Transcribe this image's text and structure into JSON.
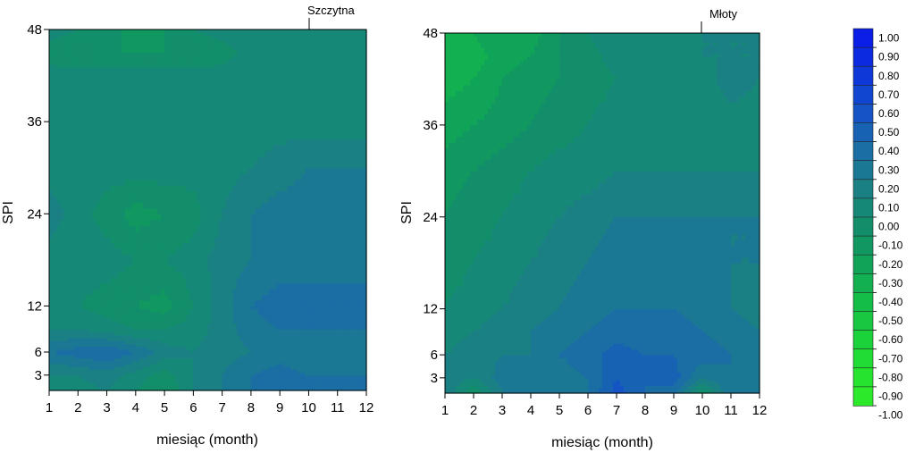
{
  "chart_data": [
    {
      "type": "heatmap",
      "station": "Szczytna",
      "xlabel": "miesiąc (month)",
      "ylabel": "SPI",
      "x_ticks": [
        "1",
        "2",
        "3",
        "4",
        "5",
        "6",
        "7",
        "8",
        "9",
        "10",
        "11",
        "12"
      ],
      "y_ticks": [
        "3",
        "6",
        "12",
        "24",
        "36",
        "48"
      ],
      "xlim": [
        1,
        12
      ],
      "ylim": [
        1,
        48
      ],
      "y_rows": [
        1,
        3,
        6,
        9,
        12,
        18,
        24,
        30,
        36,
        42,
        45,
        48
      ],
      "z": [
        [
          0.05,
          0.05,
          0.1,
          0.0,
          -0.1,
          0.1,
          0.2,
          0.3,
          0.35,
          0.3,
          0.35,
          0.35
        ],
        [
          0.1,
          0.1,
          0.15,
          0.05,
          -0.05,
          0.1,
          0.2,
          0.3,
          0.35,
          0.3,
          0.3,
          0.3
        ],
        [
          0.3,
          0.35,
          0.4,
          0.3,
          0.15,
          0.1,
          0.15,
          0.2,
          0.25,
          0.2,
          0.2,
          0.2
        ],
        [
          0.1,
          0.1,
          0.05,
          0.0,
          0.0,
          0.05,
          0.15,
          0.25,
          0.3,
          0.3,
          0.3,
          0.3
        ],
        [
          0.1,
          0.0,
          -0.05,
          -0.1,
          -0.15,
          0.0,
          0.15,
          0.3,
          0.35,
          0.35,
          0.35,
          0.35
        ],
        [
          0.05,
          0.05,
          0.05,
          0.0,
          0.0,
          0.05,
          0.15,
          0.2,
          0.25,
          0.25,
          0.25,
          0.25
        ],
        [
          0.15,
          0.05,
          -0.05,
          -0.15,
          -0.1,
          -0.05,
          0.1,
          0.2,
          0.25,
          0.25,
          0.25,
          0.25
        ],
        [
          0.05,
          0.05,
          0.05,
          0.05,
          0.05,
          0.05,
          0.05,
          0.1,
          0.15,
          0.2,
          0.2,
          0.2
        ],
        [
          0.05,
          0.05,
          0.05,
          0.05,
          0.05,
          0.05,
          0.05,
          0.05,
          0.05,
          0.05,
          0.05,
          0.05
        ],
        [
          0.05,
          0.05,
          0.05,
          0.05,
          0.05,
          0.05,
          0.05,
          0.05,
          0.05,
          0.05,
          0.05,
          0.05
        ],
        [
          -0.05,
          -0.1,
          -0.1,
          -0.1,
          -0.1,
          -0.1,
          -0.05,
          0.05,
          0.05,
          0.05,
          0.05,
          0.05
        ],
        [
          0.05,
          0.0,
          -0.05,
          -0.15,
          -0.1,
          0.0,
          0.05,
          0.05,
          0.05,
          0.0,
          0.05,
          0.05
        ]
      ]
    },
    {
      "type": "heatmap",
      "station": "Młoty",
      "xlabel": "miesiąc (month)",
      "ylabel": "SPI",
      "x_ticks": [
        "1",
        "2",
        "3",
        "4",
        "5",
        "6",
        "7",
        "8",
        "9",
        "10",
        "11",
        "12"
      ],
      "y_ticks": [
        "3",
        "6",
        "12",
        "24",
        "36",
        "48"
      ],
      "xlim": [
        1,
        12
      ],
      "ylim": [
        1,
        48
      ],
      "y_rows": [
        1,
        3,
        6,
        9,
        12,
        18,
        24,
        30,
        36,
        42,
        45,
        48
      ],
      "z": [
        [
          0.2,
          -0.1,
          0.2,
          0.2,
          0.25,
          0.3,
          0.55,
          0.4,
          0.35,
          -0.1,
          0.3,
          0.3
        ],
        [
          0.15,
          0.1,
          0.25,
          0.2,
          0.25,
          0.3,
          0.5,
          0.4,
          0.45,
          0.2,
          0.3,
          0.25
        ],
        [
          0.1,
          0.15,
          0.2,
          0.2,
          0.3,
          0.35,
          0.45,
          0.4,
          0.4,
          0.35,
          0.3,
          0.2
        ],
        [
          0.05,
          0.1,
          0.15,
          0.2,
          0.25,
          0.3,
          0.35,
          0.35,
          0.35,
          0.3,
          0.25,
          0.2
        ],
        [
          0.0,
          0.05,
          0.1,
          0.15,
          0.2,
          0.25,
          0.3,
          0.3,
          0.3,
          0.25,
          0.2,
          0.15
        ],
        [
          -0.05,
          0.0,
          0.05,
          0.1,
          0.15,
          0.2,
          0.25,
          0.25,
          0.25,
          0.25,
          0.2,
          0.2
        ],
        [
          -0.1,
          -0.05,
          0.0,
          0.05,
          0.1,
          0.15,
          0.2,
          0.2,
          0.2,
          0.2,
          0.2,
          0.2
        ],
        [
          -0.15,
          -0.1,
          -0.05,
          0.0,
          0.05,
          0.05,
          0.1,
          0.1,
          0.1,
          0.1,
          0.1,
          0.1
        ],
        [
          -0.25,
          -0.2,
          -0.15,
          -0.1,
          -0.05,
          0.0,
          0.05,
          0.05,
          0.05,
          0.05,
          0.05,
          0.05
        ],
        [
          -0.35,
          -0.3,
          -0.2,
          -0.15,
          -0.1,
          -0.05,
          0.0,
          0.05,
          0.05,
          0.05,
          0.15,
          0.1
        ],
        [
          -0.4,
          -0.35,
          -0.25,
          -0.2,
          -0.1,
          -0.05,
          0.05,
          0.05,
          0.05,
          0.1,
          0.1,
          0.1
        ],
        [
          -0.35,
          -0.3,
          -0.2,
          -0.25,
          -0.1,
          0.0,
          0.1,
          0.05,
          0.1,
          0.1,
          0.1,
          0.1
        ]
      ]
    }
  ],
  "colorbar": {
    "labels": [
      "1.00",
      "0.90",
      "0.80",
      "0.70",
      "0.60",
      "0.50",
      "0.40",
      "0.30",
      "0.20",
      "0.10",
      "0.00",
      "-0.10",
      "-0.20",
      "-0.30",
      "-0.40",
      "-0.50",
      "-0.60",
      "-0.70",
      "-0.80",
      "-0.90",
      "-1.00"
    ],
    "values": [
      1.0,
      0.9,
      0.8,
      0.7,
      0.6,
      0.5,
      0.4,
      0.3,
      0.2,
      0.1,
      0.0,
      -0.1,
      -0.2,
      -0.3,
      -0.4,
      -0.5,
      -0.6,
      -0.7,
      -0.8,
      -0.9,
      -1.0
    ],
    "colors": [
      "#0a1ee6",
      "#0c2ae0",
      "#0e38d8",
      "#1046d0",
      "#1454c4",
      "#1862b4",
      "#1a6ea4",
      "#1a7894",
      "#1a8084",
      "#168878",
      "#128e6a",
      "#109860",
      "#10a458",
      "#12b050",
      "#14bc48",
      "#18c840",
      "#1cd23a",
      "#20dc34",
      "#26e42e",
      "#2cea2a"
    ]
  }
}
